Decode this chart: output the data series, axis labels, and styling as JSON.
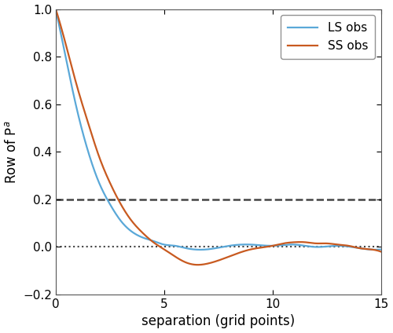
{
  "xlabel": "separation (grid points)",
  "ylabel": "Row of P$^a$",
  "xlim": [
    0,
    15
  ],
  "ylim": [
    -0.2,
    1.0
  ],
  "yticks": [
    -0.2,
    0.0,
    0.2,
    0.4,
    0.6,
    0.8,
    1.0
  ],
  "xticks": [
    0,
    5,
    10,
    15
  ],
  "hline_dashed_y": 0.2,
  "hline_dotted_y": 0.0,
  "blue_color": "#5AA8D8",
  "red_color": "#C85A20",
  "dashed_color": "#444444",
  "dotted_color": "#444444",
  "legend_entries": [
    "LS obs",
    "SS obs"
  ],
  "figsize": [
    5.0,
    4.24
  ],
  "dpi": 100
}
